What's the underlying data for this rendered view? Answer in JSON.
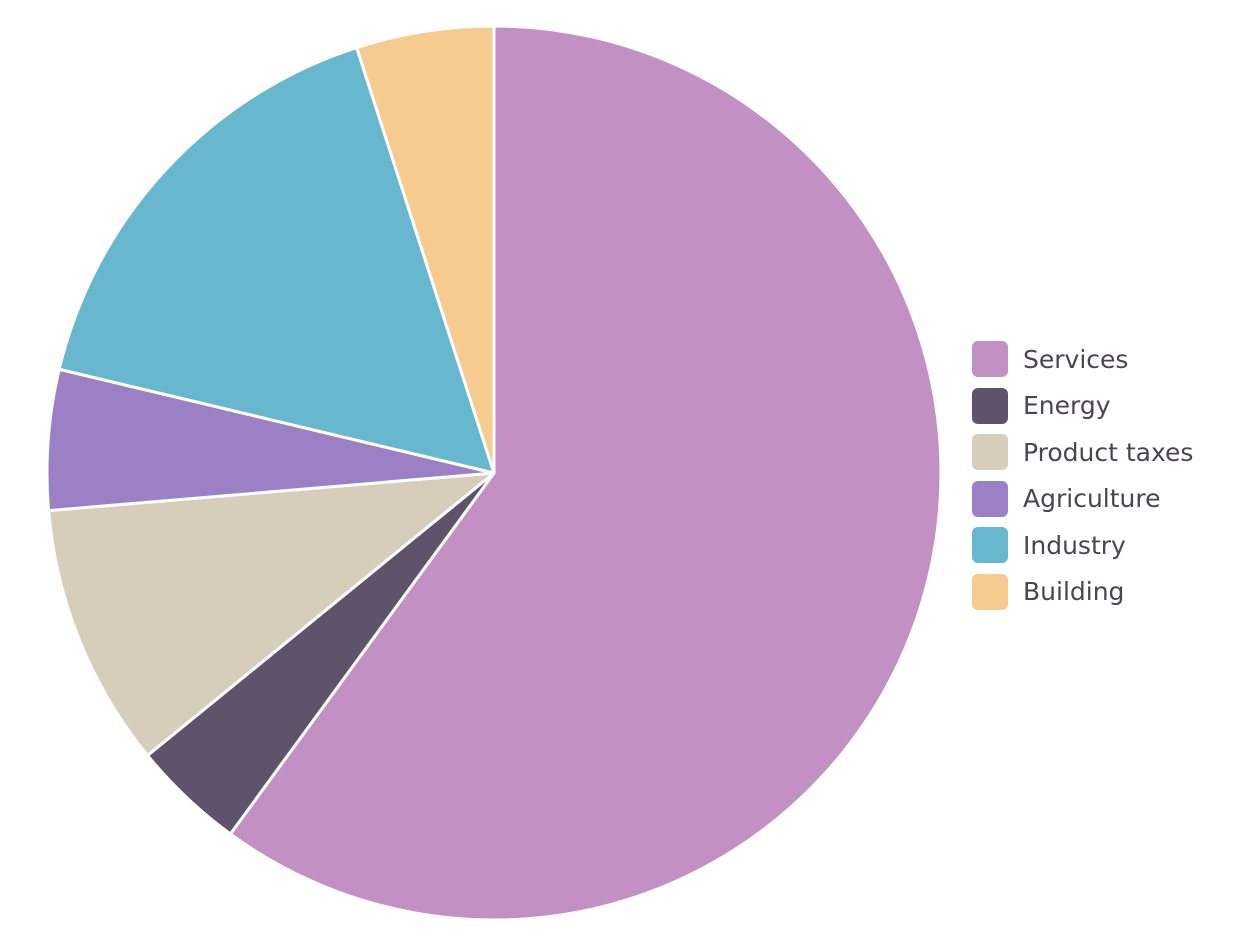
{
  "chart_data": {
    "type": "pie",
    "start_angle_deg": 0,
    "direction": "clockwise",
    "legend_position": "right",
    "slice_border_color": "#ffffff",
    "slices": [
      {
        "label": "Services",
        "value": 60.4,
        "color": "#c290c2"
      },
      {
        "label": "Energy",
        "value": 4.1,
        "color": "#5e536b"
      },
      {
        "label": "Product taxes",
        "value": 9.6,
        "color": "#d6cdbb"
      },
      {
        "label": "Agriculture",
        "value": 5.1,
        "color": "#9c80c6"
      },
      {
        "label": "Industry",
        "value": 16.4,
        "color": "#67b7cf"
      },
      {
        "label": "Building",
        "value": 5.0,
        "color": "#f6cb8f"
      }
    ]
  }
}
